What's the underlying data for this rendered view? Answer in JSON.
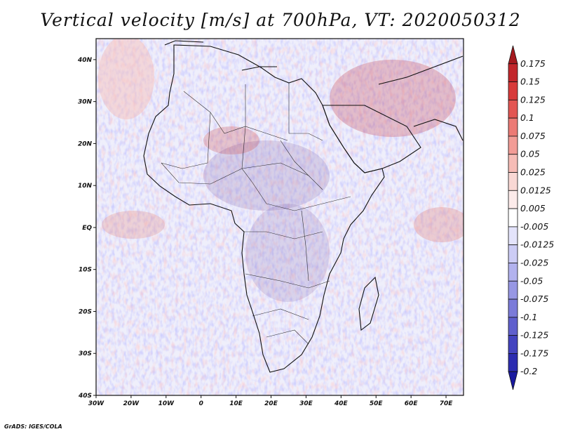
{
  "title": "Vertical velocity [m/s] at 700hPa, VT: 2020050312",
  "credit": "GrADS: IGES/COLA",
  "map": {
    "type": "filled-contour-map",
    "variable": "Vertical velocity",
    "units": "m/s",
    "level": "700hPa",
    "valid_time": "2020050312",
    "lon_range": [
      -30,
      75
    ],
    "lat_range": [
      -40,
      45
    ],
    "x_ticks": [
      "30W",
      "20W",
      "10W",
      "0",
      "10E",
      "20E",
      "30E",
      "40E",
      "50E",
      "60E",
      "70E"
    ],
    "x_tick_values": [
      -30,
      -20,
      -10,
      0,
      10,
      20,
      30,
      40,
      50,
      60,
      70
    ],
    "y_ticks": [
      "40N",
      "30N",
      "20N",
      "10N",
      "EQ",
      "10S",
      "20S",
      "30S",
      "40S"
    ],
    "y_tick_values": [
      40,
      30,
      20,
      10,
      0,
      -10,
      -20,
      -30,
      -40
    ]
  },
  "colorbar": {
    "labels": [
      "0.175",
      "0.15",
      "0.125",
      "0.1",
      "0.075",
      "0.05",
      "0.025",
      "0.0125",
      "0.005",
      "-0.005",
      "-0.0125",
      "-0.025",
      "-0.05",
      "-0.075",
      "-0.1",
      "-0.125",
      "-0.175",
      "-0.2"
    ],
    "colors": [
      "#a61a1f",
      "#c2262b",
      "#d83a3a",
      "#e35653",
      "#ec7a75",
      "#f29c96",
      "#f6bcb6",
      "#f9d8d4",
      "#fcebea",
      "#ffffff",
      "#e4e4fb",
      "#ccccf5",
      "#b2b2ee",
      "#9797e4",
      "#7b7bd9",
      "#5f5fcd",
      "#4343bf",
      "#2c2cb0",
      "#1a1a9f"
    ]
  }
}
